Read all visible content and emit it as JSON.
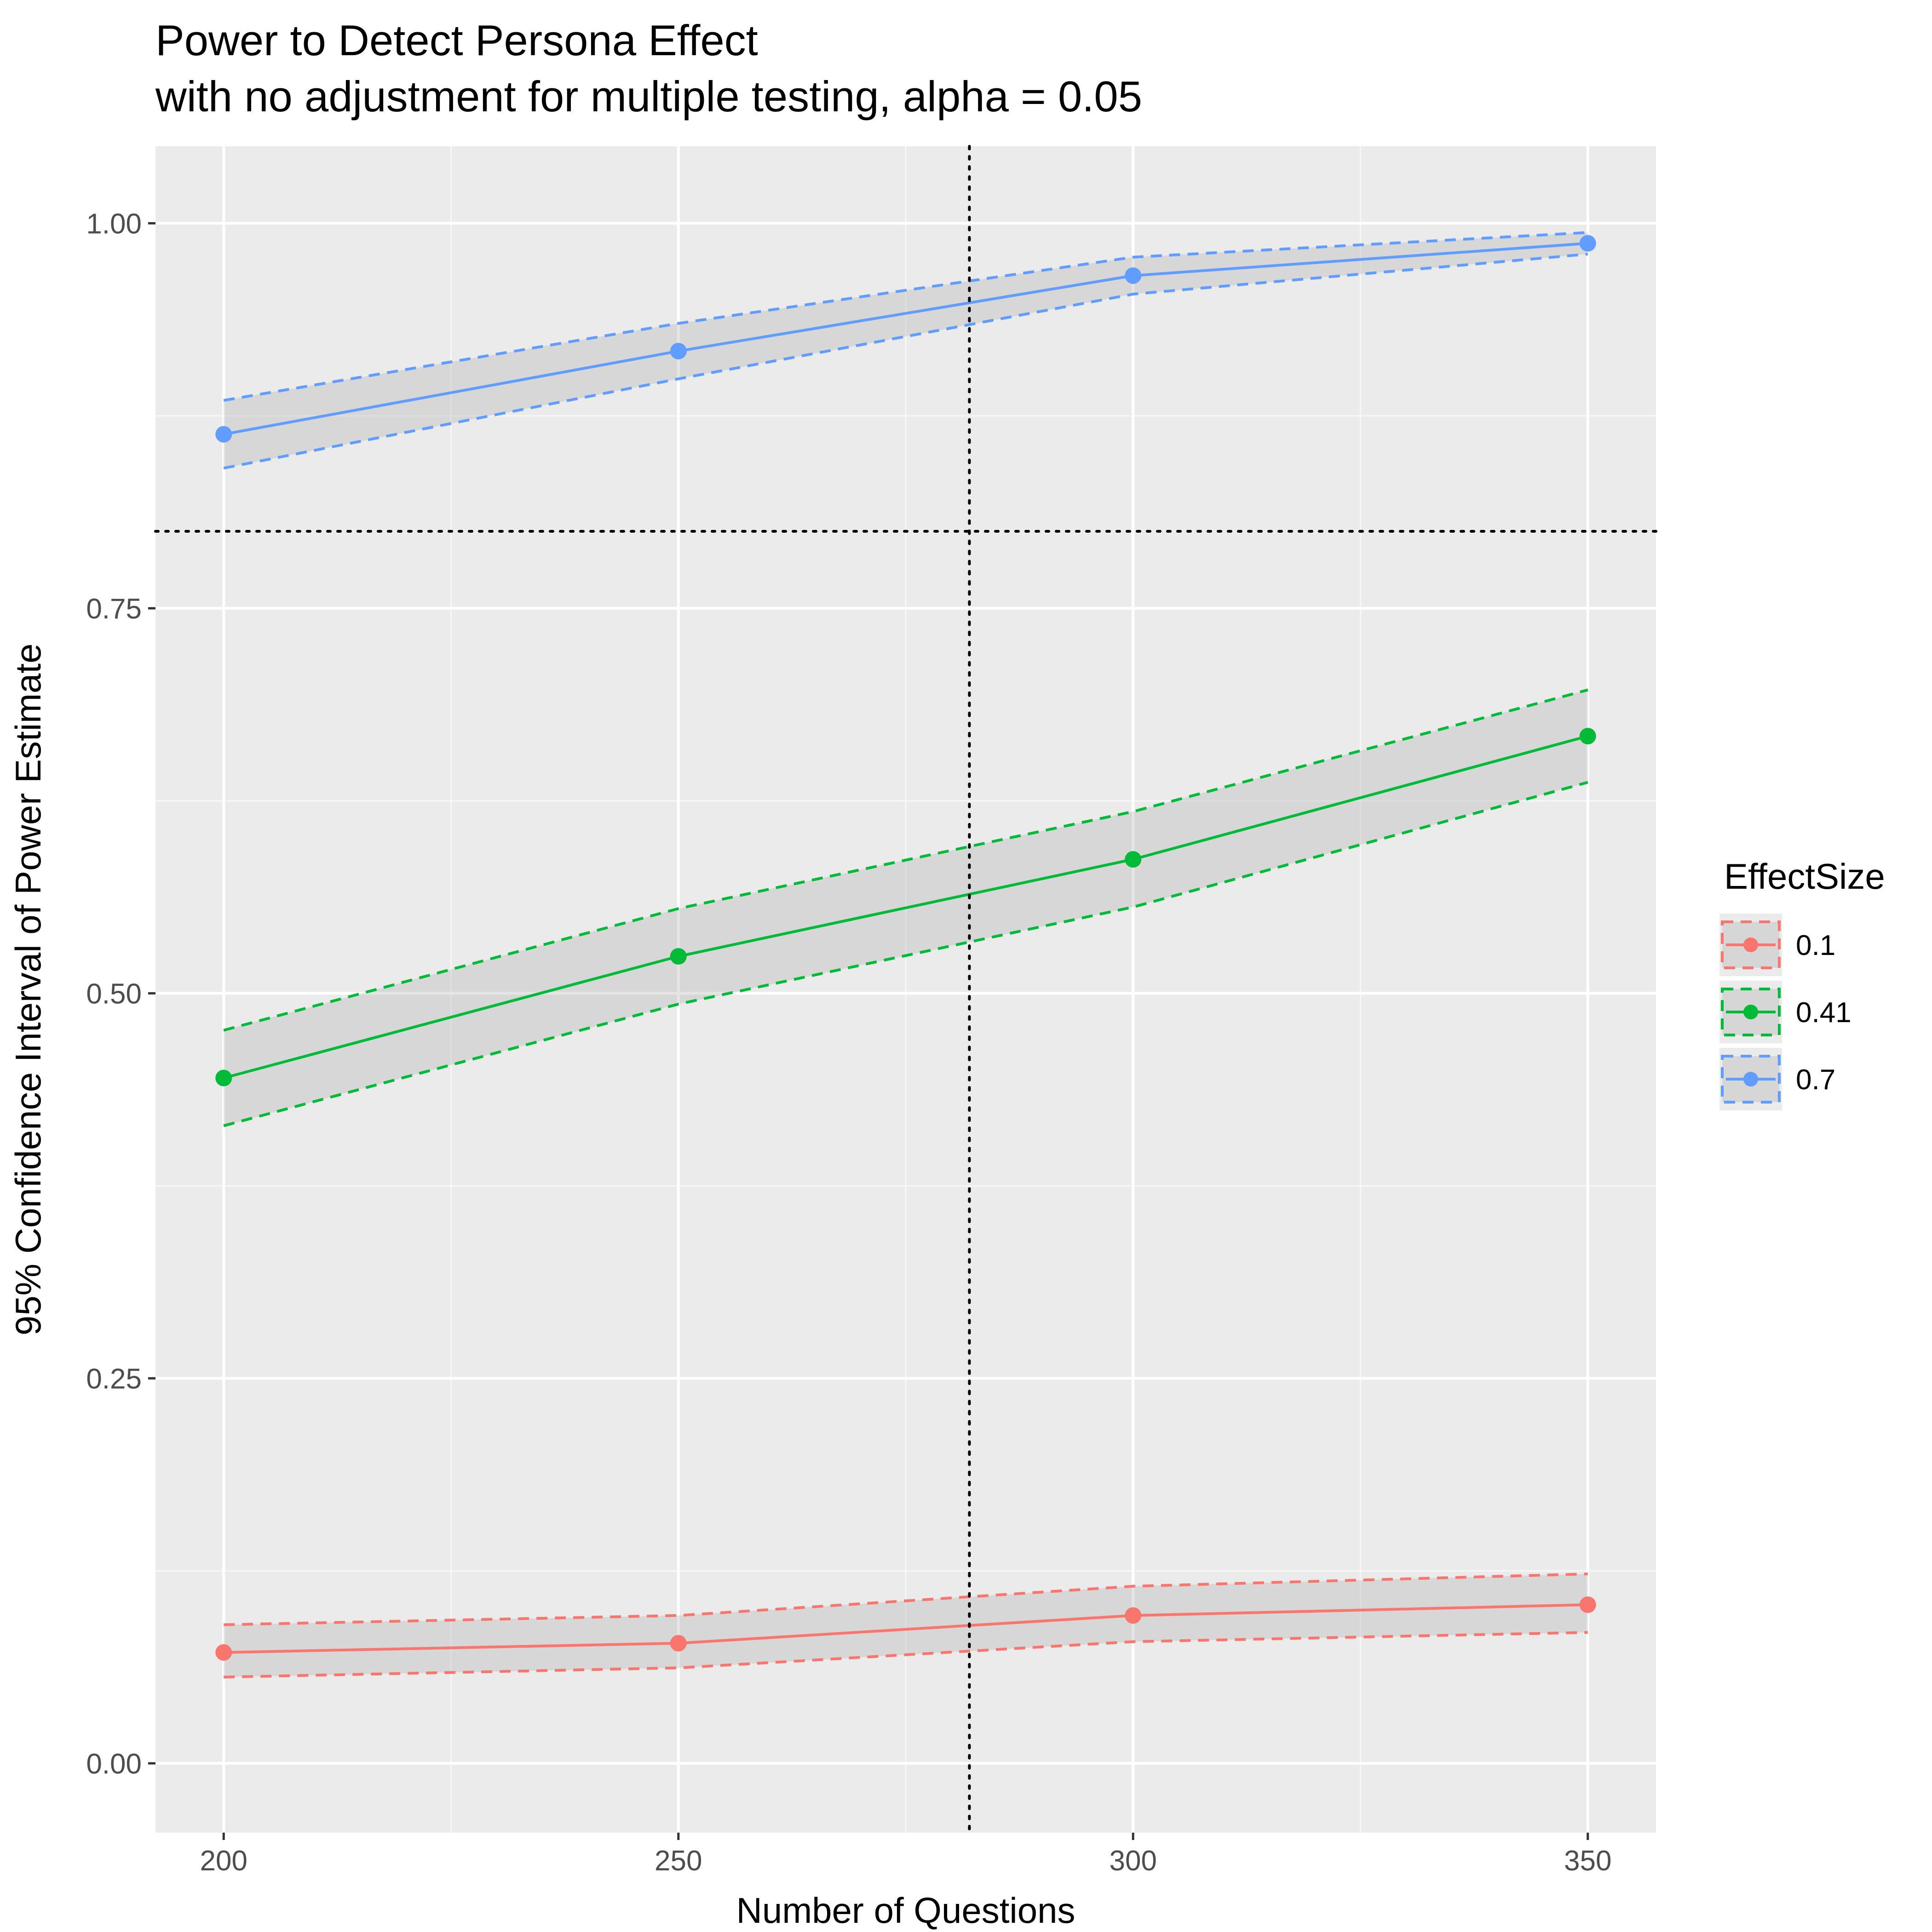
{
  "chart_data": {
    "type": "line",
    "title": "Power to Detect Persona Effect",
    "subtitle": "with no adjustment for multiple testing, alpha = 0.05",
    "xlabel": "Number of Questions",
    "ylabel": "95% Confidence Interval of Power Estimate",
    "xlim": [
      192.5,
      357.5
    ],
    "ylim": [
      -0.045,
      1.05
    ],
    "x_ticks": [
      200,
      250,
      300,
      350
    ],
    "x_tick_labels": [
      "200",
      "250",
      "300",
      "350"
    ],
    "y_ticks": [
      0.0,
      0.25,
      0.5,
      0.75,
      1.0
    ],
    "y_tick_labels": [
      "0.00",
      "0.25",
      "0.50",
      "0.75",
      "1.00"
    ],
    "x": [
      200,
      250,
      300,
      350
    ],
    "grid": true,
    "reference_lines": {
      "horizontal_y": 0.8,
      "vertical_x": 282
    },
    "legend_title": "EffectSize",
    "legend_position": "right",
    "series": [
      {
        "name": "0.1",
        "color": "#F8766D",
        "values": [
          0.072,
          0.078,
          0.096,
          0.103
        ],
        "lower": [
          0.056,
          0.062,
          0.079,
          0.085
        ],
        "upper": [
          0.09,
          0.096,
          0.115,
          0.123
        ]
      },
      {
        "name": "0.41",
        "color": "#00BA38",
        "values": [
          0.445,
          0.524,
          0.587,
          0.667
        ],
        "lower": [
          0.414,
          0.493,
          0.556,
          0.637
        ],
        "upper": [
          0.476,
          0.555,
          0.618,
          0.697
        ]
      },
      {
        "name": "0.7",
        "color": "#619CFF",
        "values": [
          0.863,
          0.917,
          0.966,
          0.987
        ],
        "lower": [
          0.841,
          0.899,
          0.954,
          0.98
        ],
        "upper": [
          0.885,
          0.935,
          0.978,
          0.994
        ]
      }
    ]
  }
}
